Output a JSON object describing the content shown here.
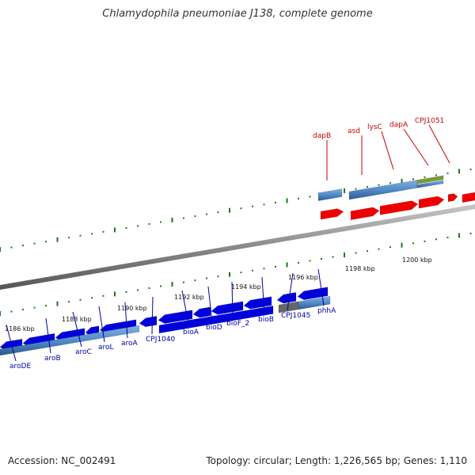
{
  "title": "Chlamydophila pneumoniae J138, complete genome",
  "footer": {
    "accession": "Accession: NC_002491",
    "summary": "Topology: circular; Length: 1,226,565 bp; Genes: 1,110"
  },
  "colors": {
    "forward": "#ee0000",
    "reverse": "#0000dd",
    "cds": "#4f86c6",
    "rna": "#7a9a3a",
    "pseudo": "#666666",
    "ticks": "#1a7a1a",
    "backbone": "#888888",
    "fwd_label": "#cc0000",
    "rev_label": "#0000aa"
  },
  "scale_labels": [
    "1186 kbp",
    "1188 kbp",
    "1190 kbp",
    "1192 kbp",
    "1194 kbp",
    "1196 kbp",
    "1198 kbp",
    "1200 kbp"
  ],
  "forward_labels": [
    "dapB",
    "asd",
    "lysC",
    "dapA",
    "CPJ1051"
  ],
  "reverse_labels": [
    "aroDE",
    "aroB",
    "aroC",
    "aroL",
    "aroA",
    "CPJ1040",
    "bioA",
    "bioD",
    "bioF_2",
    "bioB",
    "CPJ1045",
    "phhA"
  ]
}
